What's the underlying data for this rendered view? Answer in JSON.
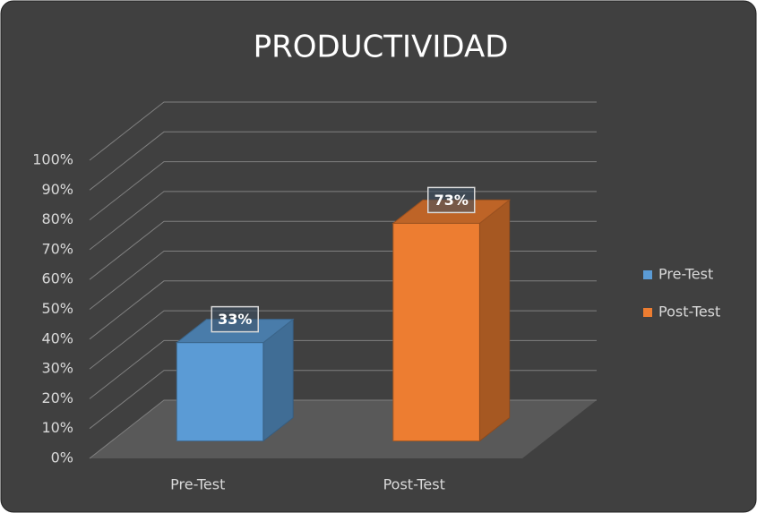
{
  "chart_data": {
    "type": "bar3d",
    "title": "PRODUCTIVIDAD",
    "categories": [
      "Pre-Test",
      "Post-Test"
    ],
    "values": [
      33,
      73
    ],
    "value_labels": [
      "33%",
      "73%"
    ],
    "colors": [
      "#5b9bd5",
      "#ed7d31"
    ],
    "ylim": [
      0,
      100
    ],
    "yticks": [
      {
        "value": 0,
        "label": "0%"
      },
      {
        "value": 10,
        "label": "10%"
      },
      {
        "value": 20,
        "label": "20%"
      },
      {
        "value": 30,
        "label": "30%"
      },
      {
        "value": 40,
        "label": "40%"
      },
      {
        "value": 50,
        "label": "50%"
      },
      {
        "value": 60,
        "label": "60%"
      },
      {
        "value": 70,
        "label": "70%"
      },
      {
        "value": 80,
        "label": "80%"
      },
      {
        "value": 90,
        "label": "90%"
      },
      {
        "value": 100,
        "label": "100%"
      }
    ],
    "grid": true,
    "legend": "right"
  }
}
